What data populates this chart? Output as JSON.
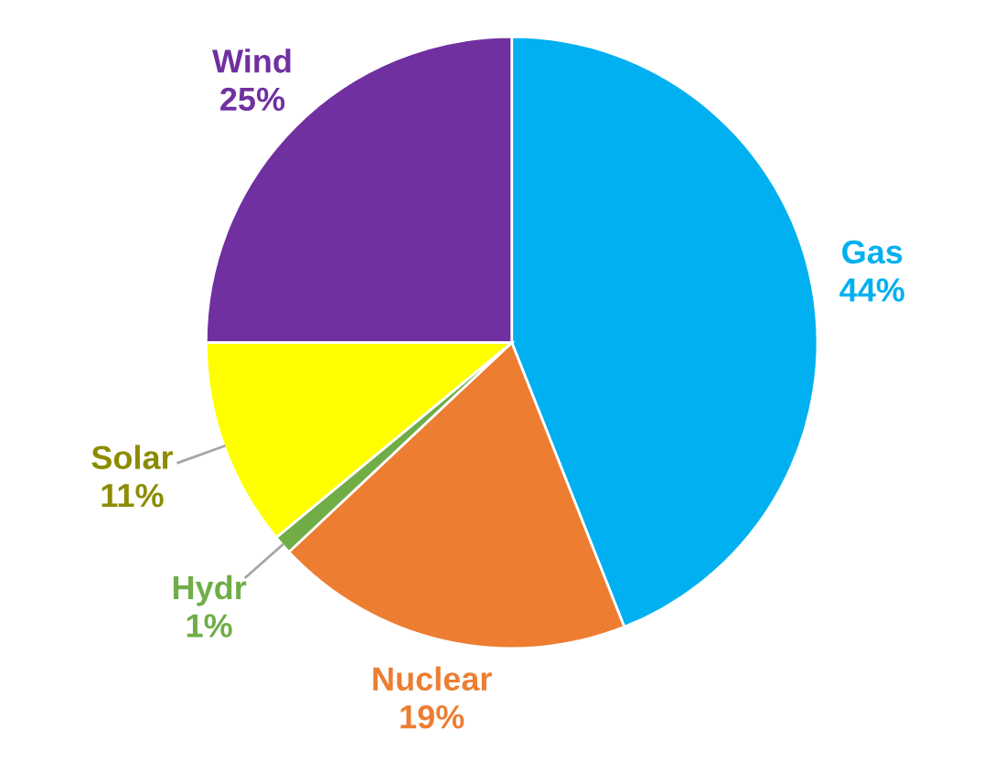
{
  "chart_data": {
    "type": "pie",
    "categories": [
      "Gas",
      "Nuclear",
      "Hydr",
      "Solar",
      "Wind"
    ],
    "values": [
      44,
      19,
      1,
      11,
      25
    ],
    "colors": [
      "#00b0f0",
      "#ed7d31",
      "#70ad47",
      "#ffff00",
      "#7030a0"
    ],
    "value_labels": [
      "44%",
      "19%",
      "1%",
      "11%",
      "25%"
    ],
    "legend": false
  }
}
